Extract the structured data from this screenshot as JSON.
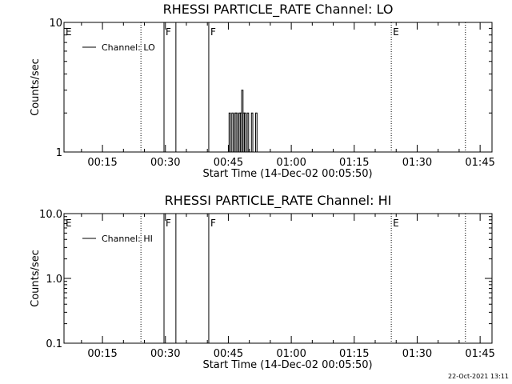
{
  "footer": "22-Oct-2021 13:11",
  "colors": {
    "background": "#ffffff",
    "foreground": "#000000"
  },
  "chart_data": [
    {
      "type": "line",
      "title": "RHESSI PARTICLE_RATE Channel: LO",
      "xlabel": "Start Time (14-Dec-02 00:05:50)",
      "ylabel": "Counts/sec",
      "yscale": "log",
      "xlim": [
        "00:05:50",
        "01:47:50"
      ],
      "ylim": [
        1,
        10
      ],
      "x_ticks": [
        "00:15",
        "00:30",
        "00:45",
        "01:00",
        "01:15",
        "01:30",
        "01:45"
      ],
      "y_ticks": [
        "1",
        "10"
      ],
      "legend": {
        "position": "top-left",
        "entries": [
          "Channel: LO"
        ]
      },
      "grid": false,
      "markers": [
        {
          "time": "00:05:50",
          "label": "E",
          "style": "dotted"
        },
        {
          "time": "00:24:10",
          "label": "",
          "style": "dotted"
        },
        {
          "time": "00:29:40",
          "label": "F",
          "style": "solid"
        },
        {
          "time": "00:32:30",
          "label": "",
          "style": "solid"
        },
        {
          "time": "00:40:20",
          "label": "F",
          "style": "solid"
        },
        {
          "time": "01:23:50",
          "label": "E",
          "style": "dotted"
        },
        {
          "time": "01:41:30",
          "label": "",
          "style": "dotted"
        }
      ],
      "series": [
        {
          "x": [
            "00:44:40",
            "00:45:00",
            "00:45:20",
            "00:45:40",
            "00:46:00",
            "00:46:20",
            "00:46:40",
            "00:47:00",
            "00:47:20",
            "00:47:40",
            "00:48:00",
            "00:48:20",
            "00:48:40",
            "00:49:00",
            "00:49:20",
            "00:49:40",
            "00:50:00",
            "00:50:20",
            "00:50:40",
            "00:51:00",
            "00:51:20",
            "00:51:40",
            "00:52:00",
            "00:52:20"
          ],
          "values": [
            1,
            1,
            2,
            1,
            2,
            1,
            2,
            2,
            1,
            2,
            2,
            3,
            2,
            2,
            1,
            2,
            1,
            1,
            2,
            1,
            1,
            2,
            1,
            1
          ]
        }
      ]
    },
    {
      "type": "line",
      "title": "RHESSI PARTICLE_RATE Channel: HI",
      "xlabel": "Start Time (14-Dec-02 00:05:50)",
      "ylabel": "Counts/sec",
      "yscale": "log",
      "xlim": [
        "00:05:50",
        "01:47:50"
      ],
      "ylim": [
        0.1,
        10.0
      ],
      "x_ticks": [
        "00:15",
        "00:30",
        "00:45",
        "01:00",
        "01:15",
        "01:30",
        "01:45"
      ],
      "y_ticks": [
        "0.1",
        "1.0",
        "10.0"
      ],
      "legend": {
        "position": "top-left",
        "entries": [
          "Channel: HI"
        ]
      },
      "grid": false,
      "markers": [
        {
          "time": "00:05:50",
          "label": "E",
          "style": "dotted"
        },
        {
          "time": "00:24:10",
          "label": "",
          "style": "dotted"
        },
        {
          "time": "00:29:40",
          "label": "F",
          "style": "solid"
        },
        {
          "time": "00:32:30",
          "label": "",
          "style": "solid"
        },
        {
          "time": "00:40:20",
          "label": "F",
          "style": "solid"
        },
        {
          "time": "01:23:50",
          "label": "E",
          "style": "dotted"
        },
        {
          "time": "01:41:30",
          "label": "",
          "style": "dotted"
        }
      ],
      "series": []
    }
  ]
}
